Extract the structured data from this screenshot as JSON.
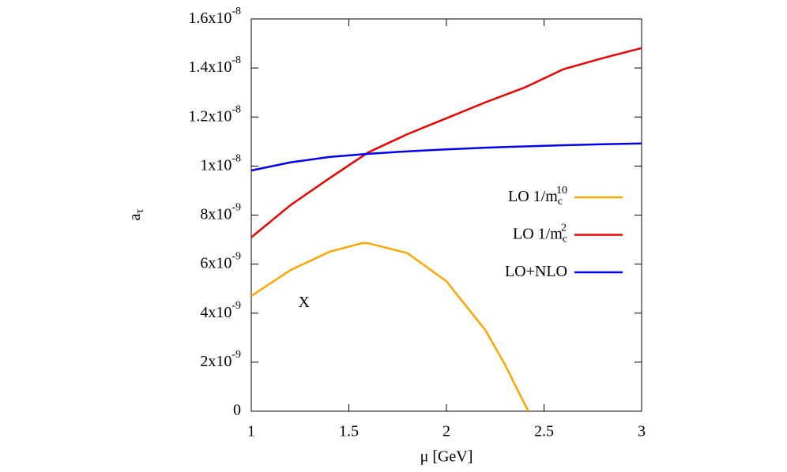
{
  "chart_data": {
    "type": "line",
    "xlabel": "μ [GeV]",
    "ylabel": "a",
    "ylabel_sub": "τ",
    "xlim": [
      1,
      3
    ],
    "xticks": [
      1,
      1.5,
      2,
      2.5,
      3
    ],
    "ylim": [
      0,
      1.6e-08
    ],
    "yticks": [
      0,
      {
        "value": 2e-09,
        "label": "2x10",
        "exponent": "-9"
      },
      {
        "value": 4e-09,
        "label": "4x10",
        "exponent": "-9"
      },
      {
        "value": 6e-09,
        "label": "6x10",
        "exponent": "-9"
      },
      {
        "value": 8e-09,
        "label": "8x10",
        "exponent": "-9"
      },
      {
        "value": 1e-08,
        "label": "1x10",
        "exponent": "-8"
      },
      {
        "value": 1.2e-08,
        "label": "1.2x10",
        "exponent": "-8"
      },
      {
        "value": 1.4e-08,
        "label": "1.4x10",
        "exponent": "-8"
      },
      {
        "value": 1.6e-08,
        "label": "1.6x10",
        "exponent": "-8"
      }
    ],
    "legend": "upper right",
    "annotations": [
      {
        "text": "X",
        "x": 1.27,
        "y": 4.4e-09
      }
    ],
    "series": [
      {
        "name": "LO 1/m",
        "name_sub": "c",
        "name_sup": "10",
        "color": "#ffa500",
        "x": [
          1,
          1.2,
          1.4,
          1.57,
          1.6,
          1.8,
          2.0,
          2.2,
          2.3,
          2.4,
          2.42
        ],
        "values": [
          4.7e-09,
          5.75e-09,
          6.5e-09,
          6.86e-09,
          6.85e-09,
          6.45e-09,
          5.3e-09,
          3.3e-09,
          1.9e-09,
          3e-10,
          0
        ]
      },
      {
        "name": "LO 1/m",
        "name_sub": "c",
        "name_sup": "2",
        "color": "#ee0000",
        "x": [
          1,
          1.2,
          1.4,
          1.6,
          1.8,
          2.0,
          2.2,
          2.4,
          2.6,
          2.8,
          3.0
        ],
        "values": [
          7.09e-09,
          8.4e-09,
          9.5e-09,
          1.056e-08,
          1.13e-08,
          1.195e-08,
          1.26e-08,
          1.32e-08,
          1.395e-08,
          1.44e-08,
          1.481e-08
        ]
      },
      {
        "name": "LO+NLO",
        "color": "#0000ee",
        "x": [
          1,
          1.2,
          1.4,
          1.6,
          1.8,
          2.0,
          2.2,
          2.4,
          2.6,
          2.8,
          3.0
        ],
        "values": [
          9.82e-09,
          1.015e-08,
          1.037e-08,
          1.05e-08,
          1.06e-08,
          1.068e-08,
          1.075e-08,
          1.08e-08,
          1.085e-08,
          1.089e-08,
          1.092e-08
        ]
      }
    ]
  }
}
